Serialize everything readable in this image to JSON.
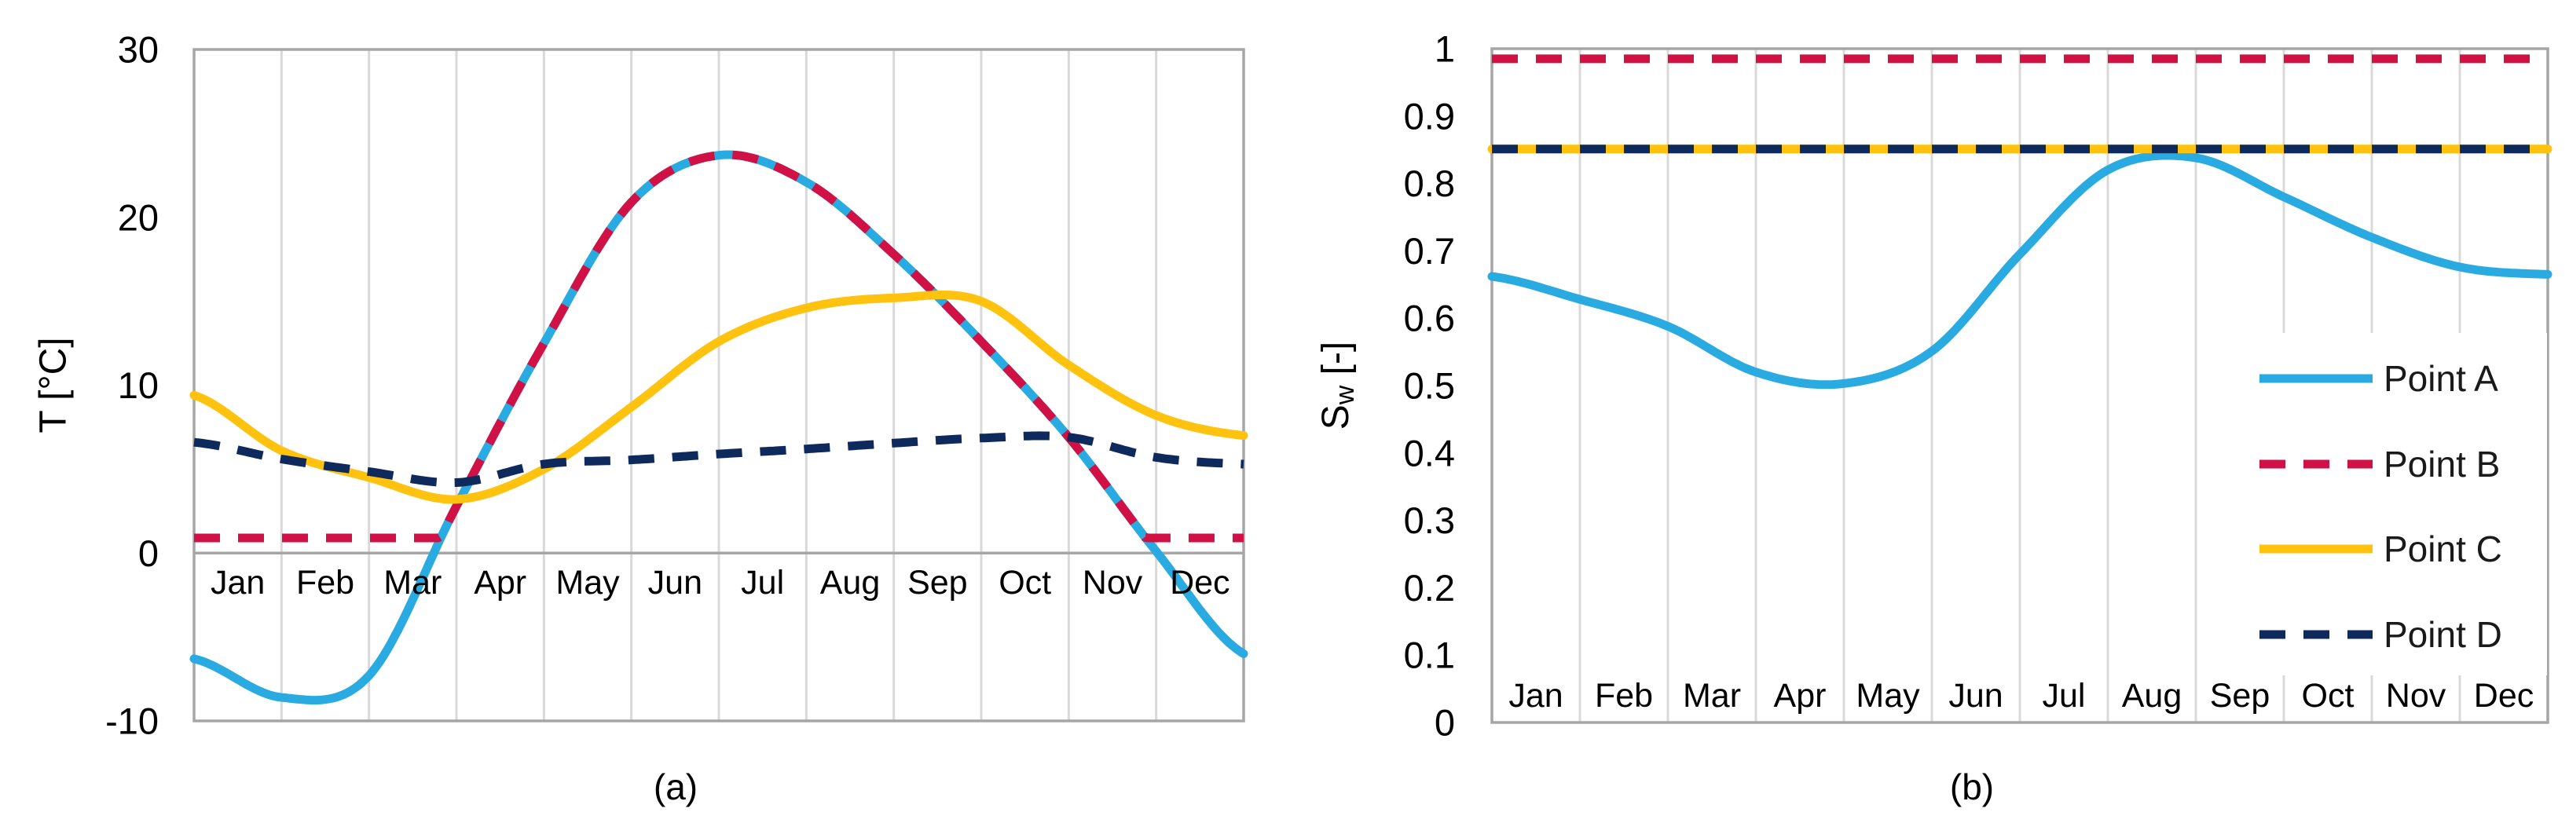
{
  "figure": {
    "description": "Two-panel line chart figure: (a) monthly temperature for four points, (b) monthly water saturation for four points",
    "captions": {
      "a": "(a)",
      "b": "(b)"
    }
  },
  "colors": {
    "point_a": "#29ABE2",
    "point_b": "#D01145",
    "point_c": "#FFC20E",
    "point_d": "#0E2A5C",
    "gridline": "#d9d9d9",
    "axis": "#a6a6a6",
    "text": "#000000"
  },
  "chart_data": [
    {
      "id": "a",
      "type": "line",
      "caption": "(a)",
      "ylabel": "T [°C]",
      "ylabel_parts": {
        "main": "T [°C]",
        "sub": "",
        "post": ""
      },
      "ylim": [
        -10,
        30
      ],
      "yticks": [
        "30",
        "20",
        "10",
        "0",
        "-10"
      ],
      "categories": [
        "Jan",
        "Feb",
        "Mar",
        "Apr",
        "May",
        "Jun",
        "Jul",
        "Aug",
        "Sep",
        "Oct",
        "Nov",
        "Dec"
      ],
      "x_note": "series values are 13 control points at month boundaries from Jan 1 to Dec 31",
      "grid": "vertical-monthly, x-axis line at 0",
      "legend": null,
      "series": [
        {
          "name": "Point A",
          "color": "#29ABE2",
          "style": "solid",
          "values": [
            -6.3,
            -8.6,
            -7.3,
            2.8,
            12.5,
            20.9,
            23.7,
            22.1,
            17.8,
            12.6,
            6.9,
            0.1,
            -6.0
          ]
        },
        {
          "name": "Point B",
          "color": "#D01145",
          "style": "dashed",
          "follows": "Point A",
          "min_clip": 0.9,
          "note": "flat at +0.9 degC Jan-Mar and mid Nov-Dec, follows Point A when above 0.9"
        },
        {
          "name": "Point C",
          "color": "#FFC20E",
          "style": "solid",
          "values": [
            9.4,
            6.1,
            4.5,
            3.2,
            5.0,
            8.7,
            12.6,
            14.6,
            15.2,
            15.0,
            11.2,
            8.2,
            7.0
          ]
        },
        {
          "name": "Point D",
          "color": "#0E2A5C",
          "style": "dashed",
          "values": [
            6.6,
            5.6,
            4.85,
            4.2,
            5.3,
            5.55,
            5.9,
            6.2,
            6.55,
            6.85,
            6.9,
            5.7,
            5.3
          ]
        }
      ]
    },
    {
      "id": "b",
      "type": "line",
      "caption": "(b)",
      "ylabel": "Sw [-]",
      "ylabel_parts": {
        "main": "S",
        "sub": "w",
        "post": " [-]"
      },
      "ylim": [
        0,
        1
      ],
      "yticks": [
        "1",
        "0.9",
        "0.8",
        "0.7",
        "0.6",
        "0.5",
        "0.4",
        "0.3",
        "0.2",
        "0.1",
        "0"
      ],
      "categories": [
        "Jan",
        "Feb",
        "Mar",
        "Apr",
        "May",
        "Jun",
        "Jul",
        "Aug",
        "Sep",
        "Oct",
        "Nov",
        "Dec"
      ],
      "x_note": "series values are 13 control points at month boundaries from Jan 1 to Dec 31",
      "grid": "vertical-monthly",
      "legend": {
        "position": "inside-right",
        "items": [
          "Point A",
          "Point B",
          "Point C",
          "Point D"
        ]
      },
      "series": [
        {
          "name": "Point A",
          "color": "#29ABE2",
          "style": "solid",
          "values": [
            0.662,
            0.628,
            0.588,
            0.52,
            0.503,
            0.551,
            0.695,
            0.82,
            0.838,
            0.78,
            0.72,
            0.676,
            0.665
          ]
        },
        {
          "name": "Point B",
          "color": "#D01145",
          "style": "dashed",
          "flat": 0.985
        },
        {
          "name": "Point C",
          "color": "#FFC20E",
          "style": "solid",
          "flat": 0.851
        },
        {
          "name": "Point D",
          "color": "#0E2A5C",
          "style": "dashed",
          "flat": 0.851
        }
      ]
    }
  ]
}
